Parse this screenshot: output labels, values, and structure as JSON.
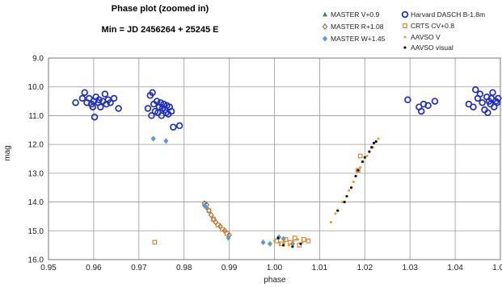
{
  "chart_data": {
    "type": "scatter",
    "title": "Phase plot (zoomed in)",
    "subtitle": "Min = JD 2456264 + 25245 E",
    "xlabel": "phase",
    "ylabel": "mag",
    "xlim": [
      0.95,
      1.05
    ],
    "ylim": [
      9.0,
      16.0
    ],
    "y_inverted": true,
    "grid": true,
    "legend_placement": "top-right",
    "x_ticks": [
      "0.95",
      "0.96",
      "0.97",
      "0.98",
      "0.99",
      "1.00",
      "1.01",
      "1.02",
      "1.03",
      "1.04",
      "1.05"
    ],
    "y_ticks": [
      "9.0",
      "10.0",
      "11.0",
      "12.0",
      "13.0",
      "14.0",
      "15.0",
      "16.0"
    ],
    "series": [
      {
        "name": "MASTER V+0.9",
        "marker": "triangle",
        "color": "#2e8b57",
        "points": []
      },
      {
        "name": "MASTER R+1.08",
        "marker": "diamond-open",
        "color": "#8b5a2b",
        "points": [
          [
            0.9845,
            14.05
          ],
          [
            0.985,
            14.1
          ],
          [
            0.9855,
            14.3
          ],
          [
            0.986,
            14.45
          ],
          [
            0.9865,
            14.6
          ],
          [
            0.987,
            14.7
          ],
          [
            0.988,
            14.85
          ],
          [
            0.989,
            15.0
          ],
          [
            0.99,
            15.15
          ]
        ]
      },
      {
        "name": "MASTER W+1.45",
        "marker": "diamond",
        "color": "#5b9bd5",
        "points": [
          [
            0.9732,
            11.8
          ],
          [
            0.976,
            11.88
          ],
          [
            0.9845,
            14.12
          ],
          [
            0.985,
            14.2
          ],
          [
            0.9898,
            15.24
          ],
          [
            0.9975,
            15.4
          ],
          [
            0.999,
            15.45
          ],
          [
            1.001,
            15.22
          ],
          [
            1.002,
            15.28
          ],
          [
            1.004,
            15.45
          ]
        ]
      },
      {
        "name": "Harvard DASCH B-1.8m",
        "marker": "circle-open",
        "color": "#1f2fbf",
        "points": [
          [
            0.956,
            10.55
          ],
          [
            0.9575,
            10.4
          ],
          [
            0.958,
            10.2
          ],
          [
            0.9585,
            10.55
          ],
          [
            0.959,
            10.4
          ],
          [
            0.9595,
            10.6
          ],
          [
            0.9598,
            10.7
          ],
          [
            0.96,
            10.5
          ],
          [
            0.9602,
            11.05
          ],
          [
            0.9605,
            10.35
          ],
          [
            0.961,
            10.55
          ],
          [
            0.9612,
            10.45
          ],
          [
            0.9615,
            10.7
          ],
          [
            0.962,
            10.5
          ],
          [
            0.9625,
            10.25
          ],
          [
            0.9628,
            10.6
          ],
          [
            0.9632,
            10.45
          ],
          [
            0.9637,
            10.55
          ],
          [
            0.9645,
            10.4
          ],
          [
            0.9655,
            10.75
          ],
          [
            0.972,
            10.75
          ],
          [
            0.9725,
            10.3
          ],
          [
            0.9728,
            11.0
          ],
          [
            0.973,
            10.2
          ],
          [
            0.9733,
            10.6
          ],
          [
            0.9736,
            10.85
          ],
          [
            0.974,
            10.5
          ],
          [
            0.9742,
            10.9
          ],
          [
            0.9745,
            10.7
          ],
          [
            0.9748,
            10.55
          ],
          [
            0.975,
            11.0
          ],
          [
            0.9752,
            10.75
          ],
          [
            0.9755,
            10.6
          ],
          [
            0.9758,
            10.8
          ],
          [
            0.976,
            10.9
          ],
          [
            0.9762,
            10.65
          ],
          [
            0.9765,
            10.95
          ],
          [
            0.9768,
            10.7
          ],
          [
            0.9772,
            10.85
          ],
          [
            0.9776,
            11.4
          ],
          [
            0.979,
            11.35
          ],
          [
            1.0295,
            10.45
          ],
          [
            1.032,
            10.7
          ],
          [
            1.0325,
            10.85
          ],
          [
            1.033,
            10.6
          ],
          [
            1.034,
            10.65
          ],
          [
            1.0355,
            10.5
          ],
          [
            1.043,
            10.6
          ],
          [
            1.044,
            10.7
          ],
          [
            1.0445,
            10.1
          ],
          [
            1.045,
            10.4
          ],
          [
            1.0455,
            10.25
          ],
          [
            1.046,
            10.55
          ],
          [
            1.0465,
            10.8
          ],
          [
            1.047,
            10.35
          ],
          [
            1.0472,
            10.9
          ],
          [
            1.0475,
            10.5
          ],
          [
            1.0478,
            10.6
          ],
          [
            1.048,
            10.4
          ],
          [
            1.0483,
            10.2
          ],
          [
            1.0486,
            10.7
          ],
          [
            1.049,
            10.5
          ],
          [
            1.0493,
            10.55
          ],
          [
            1.0495,
            10.4
          ]
        ]
      },
      {
        "name": "CRTS CV+0.8",
        "marker": "square-open",
        "color": "#e07b20",
        "points": [
          [
            0.9735,
            15.4
          ],
          [
            0.9855,
            14.3
          ],
          [
            0.9865,
            14.6
          ],
          [
            0.9875,
            14.8
          ],
          [
            0.9885,
            14.95
          ],
          [
            0.9895,
            15.1
          ],
          [
            1.0005,
            15.35
          ],
          [
            1.0015,
            15.45
          ],
          [
            1.0025,
            15.3
          ],
          [
            1.0035,
            15.4
          ],
          [
            1.0045,
            15.25
          ],
          [
            1.0055,
            15.5
          ],
          [
            1.0065,
            15.3
          ],
          [
            1.0075,
            15.35
          ],
          [
            1.0185,
            12.9
          ],
          [
            1.019,
            12.4
          ]
        ]
      },
      {
        "name": "AAVSO V",
        "marker": "dot",
        "color": "#f0a030",
        "points": [
          [
            1.0,
            15.35
          ],
          [
            1.0012,
            15.45
          ],
          [
            1.0022,
            15.42
          ],
          [
            1.0032,
            15.5
          ],
          [
            1.0042,
            15.35
          ],
          [
            1.0052,
            15.3
          ],
          [
            1.0062,
            15.4
          ],
          [
            1.0125,
            14.7
          ],
          [
            1.0135,
            14.4
          ],
          [
            1.015,
            14.0
          ],
          [
            1.0165,
            13.6
          ],
          [
            1.0175,
            13.3
          ],
          [
            1.019,
            12.8
          ],
          [
            1.0205,
            12.4
          ],
          [
            1.0218,
            12.1
          ],
          [
            1.023,
            11.8
          ]
        ]
      },
      {
        "name": "AAVSO visual",
        "marker": "dot",
        "color": "#111111",
        "points": [
          [
            1.0008,
            15.25
          ],
          [
            1.002,
            15.5
          ],
          [
            1.004,
            15.55
          ],
          [
            1.0058,
            15.45
          ],
          [
            1.014,
            14.3
          ],
          [
            1.0155,
            14.0
          ],
          [
            1.016,
            13.8
          ],
          [
            1.017,
            13.5
          ],
          [
            1.018,
            13.1
          ],
          [
            1.0185,
            12.9
          ],
          [
            1.0195,
            12.6
          ],
          [
            1.02,
            12.45
          ],
          [
            1.021,
            12.25
          ],
          [
            1.0215,
            12.1
          ],
          [
            1.022,
            11.95
          ],
          [
            1.0225,
            11.9
          ]
        ]
      }
    ]
  }
}
